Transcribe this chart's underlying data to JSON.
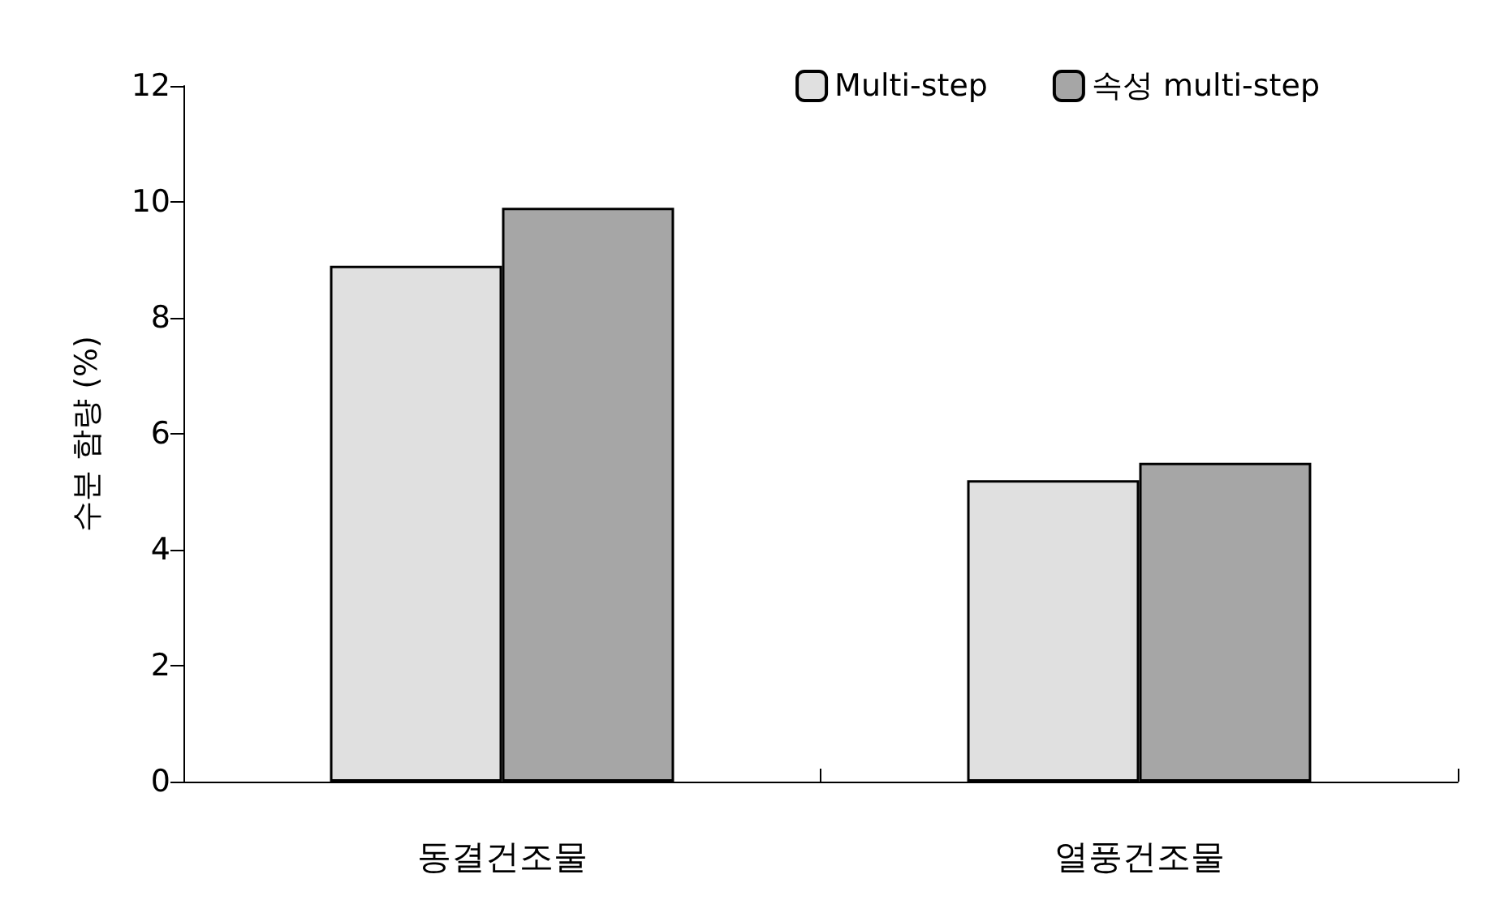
{
  "chart_data": {
    "type": "bar",
    "ylabel": "수분 함량 (%)",
    "categories": [
      "동결건조물",
      "열풍건조물"
    ],
    "series": [
      {
        "name": "Multi-step",
        "color": "#e0e0e0",
        "values": [
          8.9,
          5.2
        ]
      },
      {
        "name": "속성 multi-step",
        "color": "#a6a6a6",
        "values": [
          9.9,
          5.5
        ]
      }
    ],
    "ylim": [
      0,
      12
    ],
    "yticks": [
      0,
      2,
      4,
      6,
      8,
      10,
      12
    ],
    "grid": false,
    "legend": "top right"
  }
}
